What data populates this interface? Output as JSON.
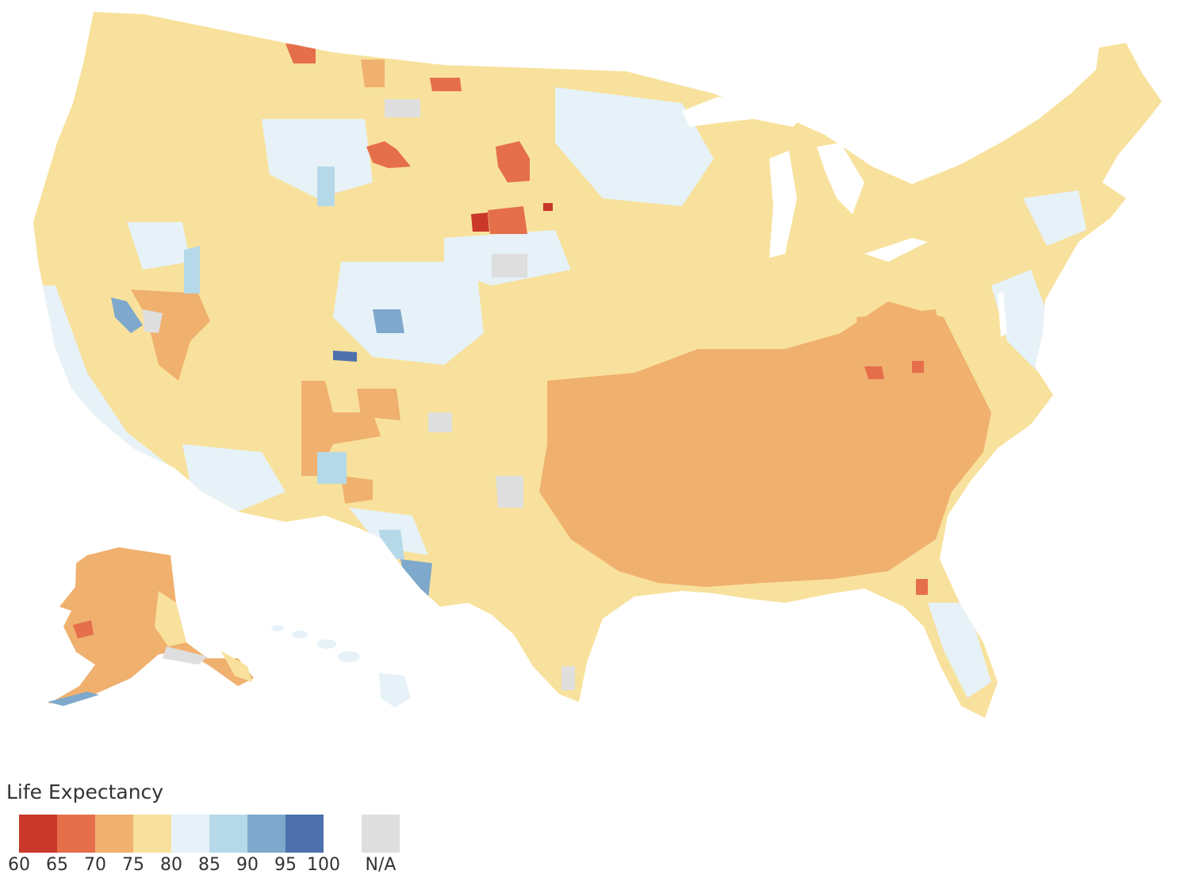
{
  "legend": {
    "title": "Life Expectancy",
    "bins": [
      {
        "from": 60,
        "to": 65,
        "color": "#c9382a"
      },
      {
        "from": 65,
        "to": 70,
        "color": "#e56e4b"
      },
      {
        "from": 70,
        "to": 75,
        "color": "#f0b06e"
      },
      {
        "from": 75,
        "to": 80,
        "color": "#f8e19c"
      },
      {
        "from": 80,
        "to": 85,
        "color": "#e6f2f8"
      },
      {
        "from": 85,
        "to": 90,
        "color": "#b5d9e8"
      },
      {
        "from": 90,
        "to": 95,
        "color": "#7ea8cc"
      },
      {
        "from": 95,
        "to": 100,
        "color": "#4e70ad"
      }
    ],
    "ticks": [
      "60",
      "65",
      "70",
      "75",
      "80",
      "85",
      "90",
      "95",
      "100"
    ],
    "na_label": "N/A",
    "na_color": "#dedede"
  },
  "map": {
    "regions": [
      "contiguous-us",
      "alaska",
      "hawaii"
    ]
  }
}
